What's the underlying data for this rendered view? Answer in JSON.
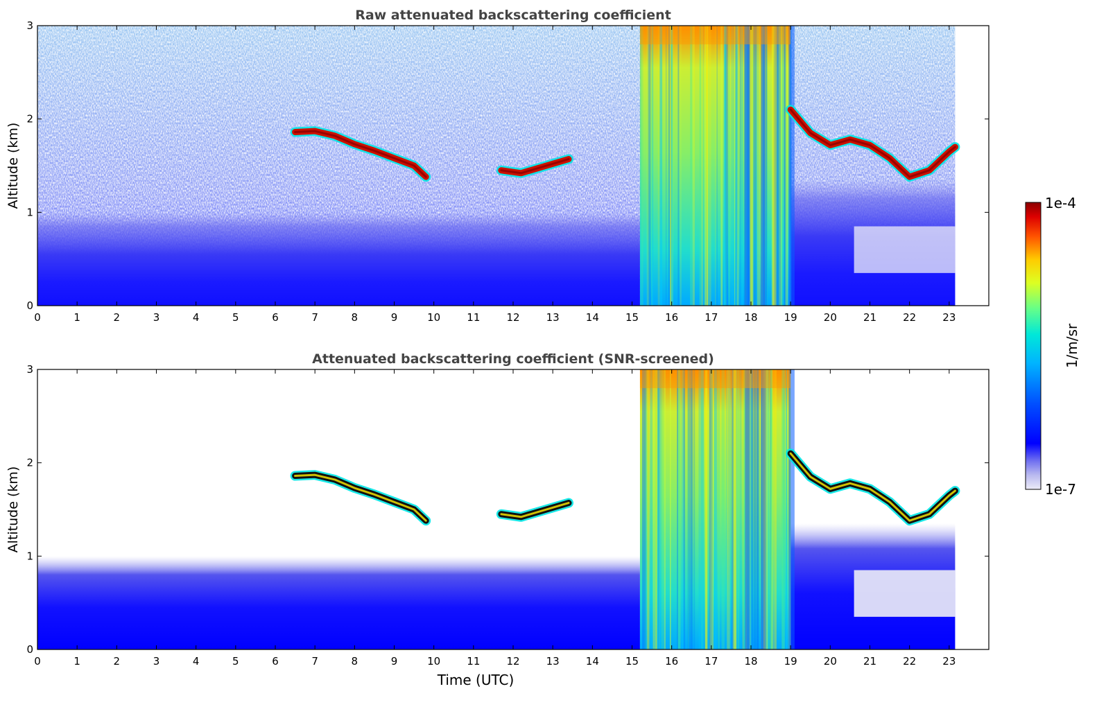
{
  "chart_data": [
    {
      "type": "heatmap",
      "title": "Raw attenuated backscattering coefficient",
      "ylabel": "Altitude (km)",
      "xlabel": "",
      "xlim": [
        0,
        24
      ],
      "ylim": [
        0,
        3
      ],
      "x_ticks": [
        "0",
        "1",
        "2",
        "3",
        "4",
        "5",
        "6",
        "7",
        "8",
        "9",
        "10",
        "11",
        "12",
        "13",
        "14",
        "15",
        "16",
        "17",
        "18",
        "19",
        "20",
        "21",
        "22",
        "23"
      ],
      "y_ticks": [
        "0",
        "1",
        "2",
        "3"
      ],
      "data_end_time": 23.15,
      "screened": false,
      "features": [
        {
          "kind": "boundary_layer",
          "time_range": [
            0,
            15.2
          ],
          "altitude_top": 1.0
        },
        {
          "kind": "cloud_layer",
          "points": [
            [
              6.5,
              1.86
            ],
            [
              7,
              1.87
            ],
            [
              7.5,
              1.82
            ],
            [
              8,
              1.73
            ],
            [
              8.5,
              1.66
            ],
            [
              9,
              1.58
            ],
            [
              9.5,
              1.5
            ],
            [
              9.8,
              1.38
            ]
          ]
        },
        {
          "kind": "cloud_layer",
          "points": [
            [
              11.7,
              1.45
            ],
            [
              12.2,
              1.42
            ],
            [
              12.6,
              1.47
            ],
            [
              13,
              1.52
            ],
            [
              13.4,
              1.57
            ]
          ]
        },
        {
          "kind": "precipitation",
          "time_range": [
            15.2,
            19.0
          ],
          "top": 3.0
        },
        {
          "kind": "cloud_layer",
          "points": [
            [
              19,
              2.1
            ],
            [
              19.5,
              1.85
            ],
            [
              20,
              1.72
            ],
            [
              20.5,
              1.78
            ],
            [
              21,
              1.72
            ],
            [
              21.5,
              1.58
            ],
            [
              22,
              1.38
            ],
            [
              22.5,
              1.45
            ],
            [
              23,
              1.65
            ],
            [
              23.15,
              1.7
            ]
          ]
        }
      ]
    },
    {
      "type": "heatmap",
      "title": "Attenuated backscattering coefficient (SNR-screened)",
      "ylabel": "Altitude (km)",
      "xlabel": "Time (UTC)",
      "xlim": [
        0,
        24
      ],
      "ylim": [
        0,
        3
      ],
      "x_ticks": [
        "0",
        "1",
        "2",
        "3",
        "4",
        "5",
        "6",
        "7",
        "8",
        "9",
        "10",
        "11",
        "12",
        "13",
        "14",
        "15",
        "16",
        "17",
        "18",
        "19",
        "20",
        "21",
        "22",
        "23"
      ],
      "y_ticks": [
        "0",
        "1",
        "2",
        "3"
      ],
      "data_end_time": 23.15,
      "screened": true,
      "features": [
        {
          "kind": "boundary_layer",
          "time_range": [
            0,
            15.2
          ],
          "altitude_top": 1.0
        },
        {
          "kind": "cloud_layer",
          "points": [
            [
              6.5,
              1.86
            ],
            [
              7,
              1.87
            ],
            [
              7.5,
              1.82
            ],
            [
              8,
              1.73
            ],
            [
              8.5,
              1.66
            ],
            [
              9,
              1.58
            ],
            [
              9.5,
              1.5
            ],
            [
              9.8,
              1.38
            ]
          ]
        },
        {
          "kind": "cloud_layer",
          "points": [
            [
              11.7,
              1.45
            ],
            [
              12.2,
              1.42
            ],
            [
              12.6,
              1.47
            ],
            [
              13,
              1.52
            ],
            [
              13.4,
              1.57
            ]
          ]
        },
        {
          "kind": "precipitation",
          "time_range": [
            15.2,
            19.0
          ],
          "top": 3.0
        },
        {
          "kind": "cloud_layer",
          "points": [
            [
              19,
              2.1
            ],
            [
              19.5,
              1.85
            ],
            [
              20,
              1.72
            ],
            [
              20.5,
              1.78
            ],
            [
              21,
              1.72
            ],
            [
              21.5,
              1.58
            ],
            [
              22,
              1.38
            ],
            [
              22.5,
              1.45
            ],
            [
              23,
              1.65
            ],
            [
              23.15,
              1.7
            ]
          ]
        }
      ]
    }
  ],
  "colorbar": {
    "label": "1/m/sr",
    "max_label": "1e-4",
    "min_label": "1e-7",
    "range": [
      1e-07,
      0.0001
    ],
    "scale": "log",
    "colormap": [
      "#ecebf7",
      "#c8c8f2",
      "#9b9bea",
      "#5e5ef0",
      "#0000ff",
      "#0033ff",
      "#0077ff",
      "#00b4ff",
      "#00e5e5",
      "#33ffbb",
      "#88ff77",
      "#ccff33",
      "#ffee00",
      "#ffbb00",
      "#ff7700",
      "#ff3300",
      "#dd0000",
      "#8b0000"
    ]
  }
}
